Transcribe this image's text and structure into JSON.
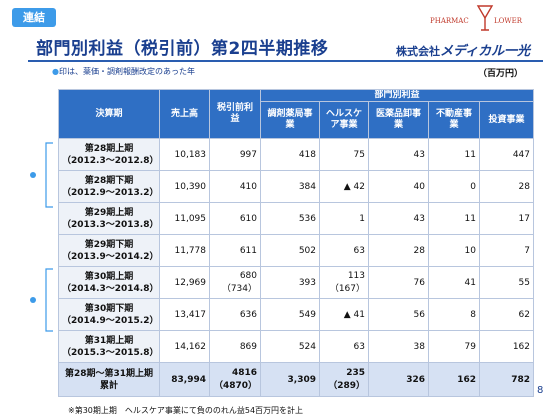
{
  "header": {
    "badge": "連結",
    "title": "部門別利益（税引前）第2四半期推移",
    "logo_left": "PHARMAC",
    "logo_right": "LOWER",
    "company_prefix": "株式会社",
    "company_brand": "メディカル一光"
  },
  "note": {
    "bullet": "●",
    "text": "印は、薬価・調剤報酬改定のあった年"
  },
  "unit": "（百万円）",
  "table": {
    "group_header": "部門別利益",
    "columns": {
      "period": "決算期",
      "sales": "売上高",
      "pretax": "税引前利益",
      "dispensing": "調剤薬局事業",
      "healthcare": "ヘルスケア事業",
      "wholesale": "医薬品卸事業",
      "realestate": "不動産事業",
      "investment": "投資事業"
    },
    "rows": [
      {
        "period": "第28期上期",
        "range": "（2012.3～2012.8）",
        "sales": "10,183",
        "pretax": "997",
        "pretax_sub": "",
        "dispensing": "418",
        "healthcare": "75",
        "healthcare_sub": "",
        "wholesale": "43",
        "realestate": "11",
        "investment": "447"
      },
      {
        "period": "第28期下期",
        "range": "（2012.9～2013.2）",
        "sales": "10,390",
        "pretax": "410",
        "pretax_sub": "",
        "dispensing": "384",
        "healthcare": "▲ 42",
        "healthcare_sub": "",
        "wholesale": "40",
        "realestate": "0",
        "investment": "28"
      },
      {
        "period": "第29期上期",
        "range": "（2013.3～2013.8）",
        "sales": "11,095",
        "pretax": "610",
        "pretax_sub": "",
        "dispensing": "536",
        "healthcare": "1",
        "healthcare_sub": "",
        "wholesale": "43",
        "realestate": "11",
        "investment": "17"
      },
      {
        "period": "第29期下期",
        "range": "（2013.9～2014.2）",
        "sales": "11,778",
        "pretax": "611",
        "pretax_sub": "",
        "dispensing": "502",
        "healthcare": "63",
        "healthcare_sub": "",
        "wholesale": "28",
        "realestate": "10",
        "investment": "7"
      },
      {
        "period": "第30期上期",
        "range": "（2014.3～2014.8）",
        "sales": "12,969",
        "pretax": "680",
        "pretax_sub": "（734）",
        "dispensing": "393",
        "healthcare": "113",
        "healthcare_sub": "（167）",
        "wholesale": "76",
        "realestate": "41",
        "investment": "55"
      },
      {
        "period": "第30期下期",
        "range": "（2014.9～2015.2）",
        "sales": "13,417",
        "pretax": "636",
        "pretax_sub": "",
        "dispensing": "549",
        "healthcare": "▲ 41",
        "healthcare_sub": "",
        "wholesale": "56",
        "realestate": "8",
        "investment": "62"
      },
      {
        "period": "第31期上期",
        "range": "（2015.3～2015.8）",
        "sales": "14,162",
        "pretax": "869",
        "pretax_sub": "",
        "dispensing": "524",
        "healthcare": "63",
        "healthcare_sub": "",
        "wholesale": "38",
        "realestate": "79",
        "investment": "162"
      }
    ],
    "total": {
      "period": "第28期～第31期上期",
      "range": "累計",
      "sales": "83,994",
      "pretax": "4816",
      "pretax_sub": "（4870）",
      "dispensing": "3,309",
      "healthcare": "235",
      "healthcare_sub": "（289）",
      "wholesale": "326",
      "realestate": "162",
      "investment": "782"
    }
  },
  "page_number": "8",
  "footnote": "※第30期上期　ヘルスケア事業にて負ののれん益54百万円を計上",
  "colors": {
    "accent": "#2f6fc4",
    "title": "#1a3f8f",
    "badge": "#3d9be9"
  }
}
